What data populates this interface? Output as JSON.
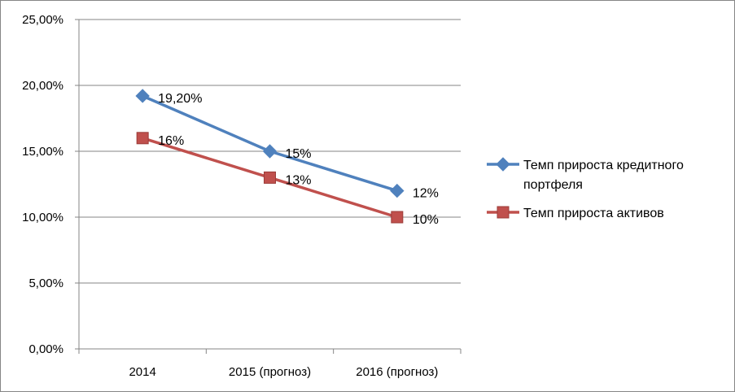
{
  "chart_data": {
    "type": "line",
    "categories": [
      "2014",
      "2015 (прогноз)",
      "2016 (прогноз)"
    ],
    "ylim": [
      0,
      25
    ],
    "yticks": [
      "0,00%",
      "5,00%",
      "10,00%",
      "15,00%",
      "20,00%",
      "25,00%"
    ],
    "grid": true,
    "legend_position": "right",
    "series": [
      {
        "name": "Темп прироста кредитного портфеля",
        "legend_lines": [
          "Темп прироста кредитного",
          "портфеля"
        ],
        "values": [
          19.2,
          15,
          12
        ],
        "labels": [
          "19,20%",
          "15%",
          "12%"
        ],
        "color": "#4F81BD",
        "marker": "diamond"
      },
      {
        "name": "Темп прироста активов",
        "legend_lines": [
          "Темп прироста активов"
        ],
        "values": [
          16,
          13,
          10
        ],
        "labels": [
          "16%",
          "13%",
          "10%"
        ],
        "color": "#C0504D",
        "marker": "square"
      }
    ]
  }
}
